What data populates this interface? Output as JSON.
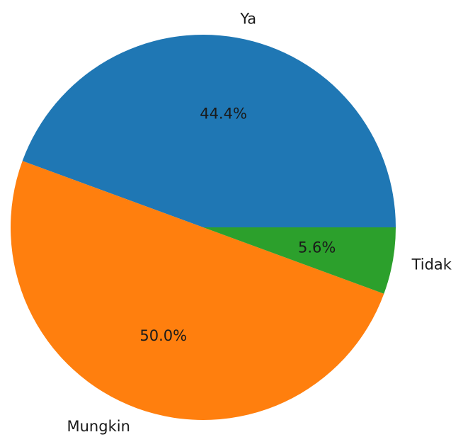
{
  "chart_data": {
    "type": "pie",
    "title": "",
    "slices": [
      {
        "label": "Ya",
        "value": 44.4,
        "pct_label": "44.4%",
        "color": "#1f77b4"
      },
      {
        "label": "Mungkin",
        "value": 50.0,
        "pct_label": "50.0%",
        "color": "#ff7f0e"
      },
      {
        "label": "Tidak",
        "value": 5.6,
        "pct_label": "5.6%",
        "color": "#2ca02c"
      }
    ],
    "start_angle_deg": 0,
    "direction": "counterclockwise",
    "legend": "none"
  }
}
